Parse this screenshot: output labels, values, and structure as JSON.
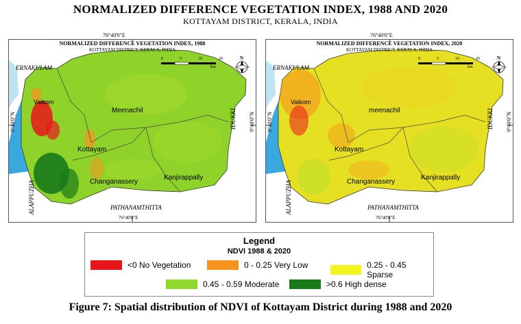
{
  "title": "NORMALIZED DIFFERENCE VEGETATION INDEX, 1988 AND 2020",
  "subtitle": "KOTTAYAM DISTRICT, KERALA, INDIA",
  "maps": [
    {
      "title": "NORMALIZED DIFFERENCE VEGETATION INDEX, 1988",
      "subtitle": "KOTTAYAM DISTRICT, KERALA, INDIA",
      "coord_top": "76°40'0\"E",
      "coord_bottom": "76°40'0\"E",
      "coord_left": "9°40'0\"N",
      "coord_right": "9°40'0\"N",
      "scale_ticks": [
        "0",
        "5",
        "10",
        "20"
      ],
      "scale_unit": "km",
      "north_label": "N",
      "regions": {
        "ernakulam": "ERNAKULAM",
        "idukki": "IDUKKI",
        "alappuzha": "ALAPPUZHA",
        "pathanamthitta": "PATHANAMTHITTA",
        "vaikom": "Vaikom",
        "meenachil": "Meenachil",
        "kottayam": "Kottayam",
        "changanassery": "Changanassery",
        "kanjirappally": "Kanjirappally"
      },
      "colors": {
        "base": "#8fd22a",
        "mix": "#b3e02c",
        "water": "#3aa8de"
      }
    },
    {
      "title": "NORMALIZED DIFFERENCE VEGETATION INDEX, 2020",
      "subtitle": "KOTTAYAM DISTRICT, KERALA, INDIA",
      "coord_top": "76°40'0\"E",
      "coord_bottom": "76°40'0\"E",
      "coord_left": "9°40'0\"N",
      "coord_right": "9°40'0\"N",
      "scale_ticks": [
        "0",
        "5",
        "10",
        "20"
      ],
      "scale_unit": "km",
      "north_label": "N",
      "regions": {
        "ernakulam": "ERNAKULAM",
        "idukki": "IDUKKI",
        "alappuzha": "ALAPPUZHA",
        "pathanamthitta": "PATHANAMTHITTA",
        "vaikom": "Vaikom",
        "meenachil": "meenachil",
        "kottayam": "Kottayam",
        "changanassery": "Changanassery",
        "kanjirappally": "Kanjirappally"
      },
      "colors": {
        "base": "#e6e022",
        "mix": "#f0c81e",
        "water": "#3aa8de"
      }
    }
  ],
  "legend": {
    "title": "Legend",
    "subtitle": "NDVI 1988 & 2020",
    "items": [
      {
        "label": "<0 No Vegetation",
        "color": "#e8161b"
      },
      {
        "label": "0 - 0.25 Very Low",
        "color": "#f7931e"
      },
      {
        "label": "0.25 - 0.45 Sparse",
        "color": "#f5f51e"
      },
      {
        "label": "0.45 - 0.59 Moderate",
        "color": "#8fd931"
      },
      {
        "label": ">0.6 High dense",
        "color": "#1a7a1a"
      }
    ]
  },
  "caption": "Figure 7: Spatial distribution of NDVI of Kottayam District during 1988 and 2020"
}
